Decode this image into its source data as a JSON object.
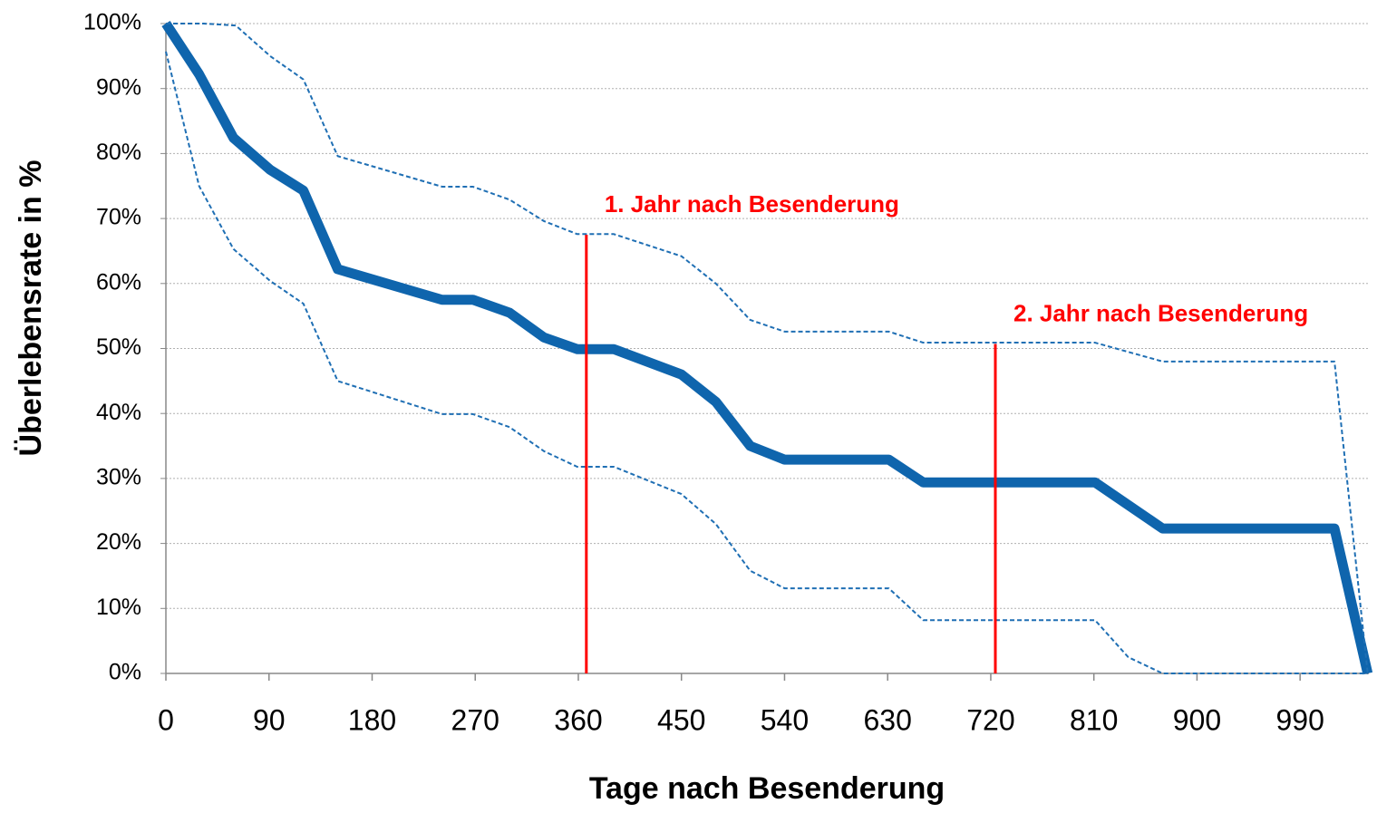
{
  "chart_data": {
    "type": "line",
    "xlabel": "Tage nach Besenderung",
    "ylabel": "Überlebensrate in  %",
    "xlim": [
      0,
      1050
    ],
    "ylim": [
      0,
      100
    ],
    "xticks": [
      0,
      90,
      180,
      270,
      360,
      450,
      540,
      630,
      720,
      810,
      900,
      990
    ],
    "yticks": [
      {
        "value": 0,
        "label": "0%"
      },
      {
        "value": 10,
        "label": "10%"
      },
      {
        "value": 20,
        "label": "20%"
      },
      {
        "value": 30,
        "label": "30%"
      },
      {
        "value": 40,
        "label": "40%"
      },
      {
        "value": 50,
        "label": "50%"
      },
      {
        "value": 60,
        "label": "60%"
      },
      {
        "value": 70,
        "label": "70%"
      },
      {
        "value": 80,
        "label": "80%"
      },
      {
        "value": 90,
        "label": "90%"
      },
      {
        "value": 100,
        "label": "100%"
      }
    ],
    "grid": true,
    "series": [
      {
        "color": "#0f65ad",
        "style": "solid",
        "x": [
          0,
          29,
          59,
          91,
          120,
          150,
          241,
          268,
          300,
          330,
          359,
          391,
          450,
          480,
          510,
          540,
          631,
          661,
          811,
          870,
          1020,
          1049
        ],
        "values": [
          100,
          92.2,
          82.4,
          77.5,
          74.3,
          62.2,
          57.5,
          57.5,
          55.5,
          51.7,
          49.9,
          49.9,
          46.0,
          41.8,
          35.0,
          32.9,
          32.9,
          29.4,
          29.4,
          22.3,
          22.3,
          0
        ]
      },
      {
        "color": "#1f6fb4",
        "style": "dashed",
        "x": [
          0,
          33,
          61,
          91,
          120,
          150,
          241,
          268,
          300,
          330,
          359,
          391,
          450,
          480,
          510,
          540,
          631,
          661,
          811,
          870,
          1020,
          1049
        ],
        "values": [
          100,
          100,
          99.7,
          95,
          91.4,
          79.6,
          74.9,
          74.9,
          72.9,
          69.6,
          67.6,
          67.6,
          64.2,
          60,
          54.4,
          52.6,
          52.6,
          50.9,
          50.9,
          48,
          48,
          0
        ]
      },
      {
        "color": "#1f6fb4",
        "style": "dashed",
        "x": [
          0,
          29,
          59,
          91,
          120,
          150,
          241,
          268,
          300,
          330,
          359,
          391,
          450,
          480,
          510,
          540,
          631,
          661,
          811,
          840,
          870,
          1049
        ],
        "values": [
          95.7,
          75,
          65.3,
          60.4,
          56.9,
          45,
          39.9,
          39.9,
          37.9,
          34.2,
          31.8,
          31.8,
          27.6,
          23,
          15.8,
          13.1,
          13.1,
          8.2,
          8.2,
          2.5,
          0,
          0
        ]
      }
    ],
    "annotations": [
      {
        "text": "1. Jahr nach Besenderung",
        "x": 367,
        "y": 67.5,
        "color": "#ff0000"
      },
      {
        "text": "2. Jahr nach Besenderung",
        "x": 724,
        "y": 50.7,
        "color": "#ff0000"
      }
    ]
  }
}
